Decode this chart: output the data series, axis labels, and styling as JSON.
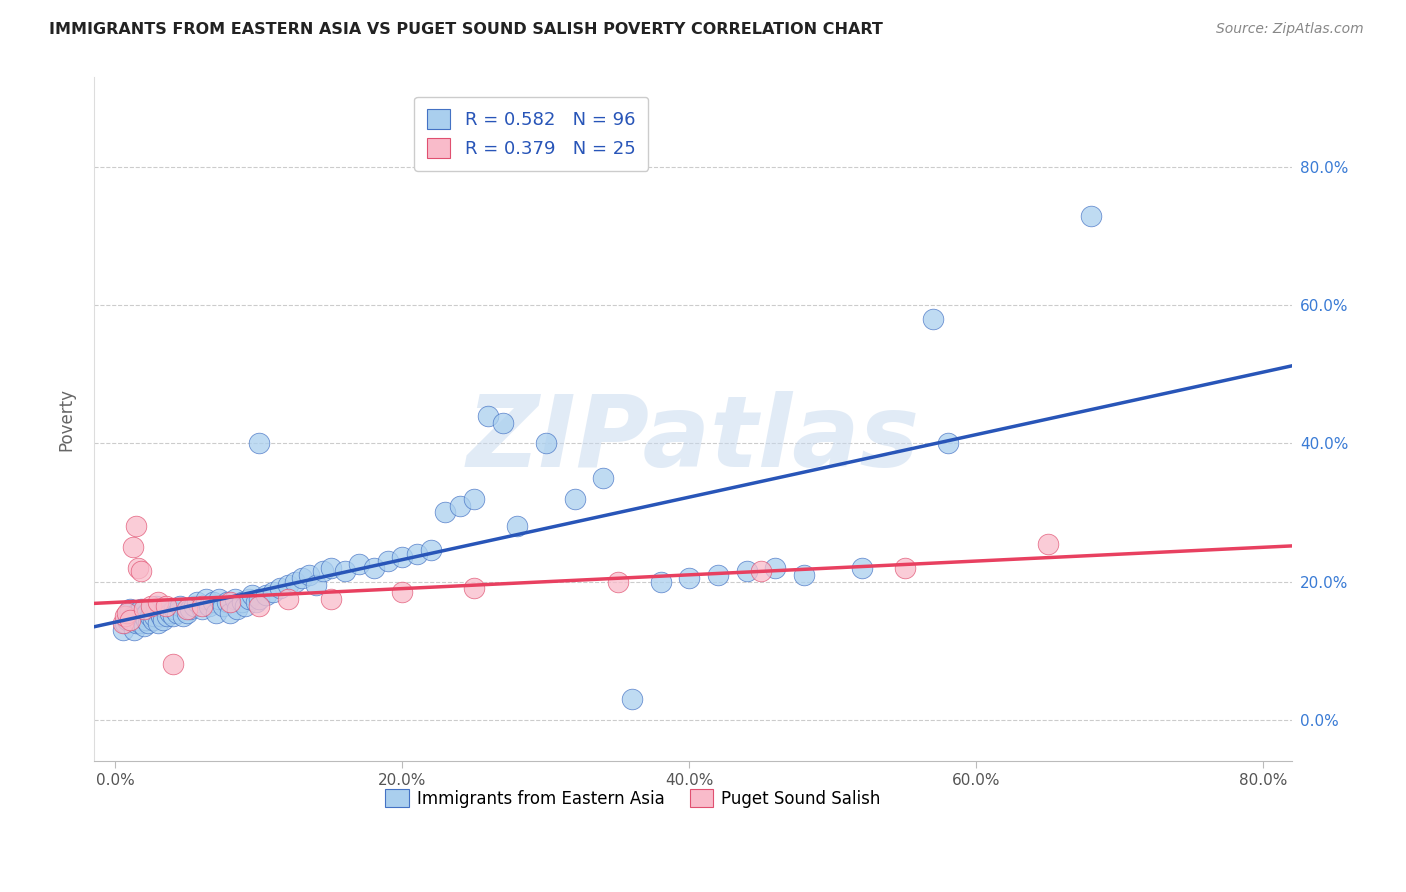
{
  "title": "IMMIGRANTS FROM EASTERN ASIA VS PUGET SOUND SALISH POVERTY CORRELATION CHART",
  "source": "Source: ZipAtlas.com",
  "ylabel": "Poverty",
  "legend_label1": "Immigrants from Eastern Asia",
  "legend_label2": "Puget Sound Salish",
  "R1": 0.582,
  "N1": 96,
  "R2": 0.379,
  "N2": 25,
  "color_blue_face": "#AACFEE",
  "color_blue_edge": "#4472C4",
  "color_pink_face": "#F9BBCA",
  "color_pink_edge": "#E05070",
  "line_color_blue": "#2855B8",
  "line_color_pink": "#E84060",
  "text_color_blue": "#2855B8",
  "watermark": "ZIPatlas",
  "background": "#FFFFFF",
  "blue_x": [
    0.005,
    0.007,
    0.008,
    0.009,
    0.01,
    0.01,
    0.011,
    0.012,
    0.013,
    0.014,
    0.015,
    0.015,
    0.016,
    0.017,
    0.018,
    0.02,
    0.02,
    0.021,
    0.022,
    0.023,
    0.024,
    0.025,
    0.026,
    0.027,
    0.028,
    0.03,
    0.031,
    0.032,
    0.033,
    0.035,
    0.036,
    0.038,
    0.04,
    0.041,
    0.043,
    0.045,
    0.047,
    0.05,
    0.052,
    0.055,
    0.057,
    0.06,
    0.063,
    0.065,
    0.068,
    0.07,
    0.072,
    0.075,
    0.078,
    0.08,
    0.083,
    0.085,
    0.088,
    0.09,
    0.093,
    0.095,
    0.098,
    0.1,
    0.105,
    0.11,
    0.115,
    0.12,
    0.125,
    0.13,
    0.135,
    0.14,
    0.145,
    0.15,
    0.16,
    0.17,
    0.18,
    0.19,
    0.2,
    0.21,
    0.22,
    0.23,
    0.24,
    0.25,
    0.26,
    0.27,
    0.28,
    0.3,
    0.32,
    0.34,
    0.36,
    0.38,
    0.4,
    0.42,
    0.44,
    0.46,
    0.48,
    0.52,
    0.57,
    0.68,
    0.1,
    0.58
  ],
  "blue_y": [
    0.13,
    0.14,
    0.145,
    0.15,
    0.155,
    0.16,
    0.145,
    0.15,
    0.13,
    0.14,
    0.15,
    0.155,
    0.145,
    0.14,
    0.16,
    0.135,
    0.15,
    0.145,
    0.155,
    0.14,
    0.15,
    0.16,
    0.145,
    0.15,
    0.165,
    0.14,
    0.155,
    0.15,
    0.145,
    0.16,
    0.15,
    0.155,
    0.15,
    0.16,
    0.155,
    0.165,
    0.15,
    0.155,
    0.16,
    0.165,
    0.17,
    0.16,
    0.175,
    0.165,
    0.17,
    0.155,
    0.175,
    0.165,
    0.17,
    0.155,
    0.175,
    0.16,
    0.17,
    0.165,
    0.175,
    0.18,
    0.17,
    0.175,
    0.18,
    0.185,
    0.19,
    0.195,
    0.2,
    0.205,
    0.21,
    0.195,
    0.215,
    0.22,
    0.215,
    0.225,
    0.22,
    0.23,
    0.235,
    0.24,
    0.245,
    0.3,
    0.31,
    0.32,
    0.44,
    0.43,
    0.28,
    0.4,
    0.32,
    0.35,
    0.03,
    0.2,
    0.205,
    0.21,
    0.215,
    0.22,
    0.21,
    0.22,
    0.58,
    0.73,
    0.4,
    0.4
  ],
  "pink_x": [
    0.005,
    0.007,
    0.008,
    0.01,
    0.012,
    0.014,
    0.016,
    0.018,
    0.02,
    0.025,
    0.03,
    0.035,
    0.04,
    0.05,
    0.06,
    0.08,
    0.1,
    0.12,
    0.15,
    0.2,
    0.25,
    0.35,
    0.45,
    0.55,
    0.65
  ],
  "pink_y": [
    0.14,
    0.15,
    0.155,
    0.145,
    0.25,
    0.28,
    0.22,
    0.215,
    0.16,
    0.165,
    0.17,
    0.165,
    0.08,
    0.16,
    0.165,
    0.17,
    0.165,
    0.175,
    0.175,
    0.185,
    0.19,
    0.2,
    0.215,
    0.22,
    0.255
  ]
}
